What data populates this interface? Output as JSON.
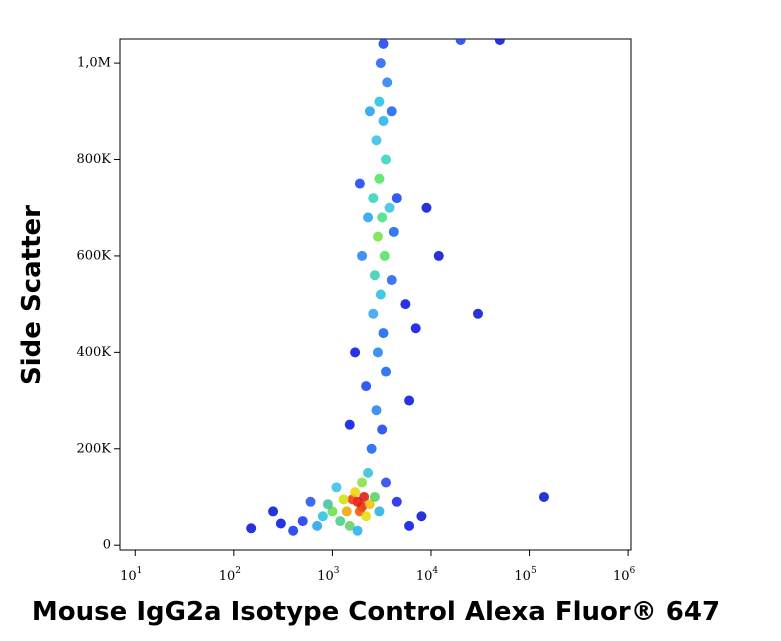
{
  "chart_data": {
    "type": "scatter",
    "xlabel": "Mouse IgG2a Isotype Control Alexa Fluor® 647",
    "ylabel": "Side Scatter",
    "xscale": "log",
    "xlim": [
      7,
      1070000
    ],
    "ylim": [
      -10000,
      1050000
    ],
    "xticks": [
      {
        "value": 10,
        "label": "10",
        "exponent": "1"
      },
      {
        "value": 100,
        "label": "10",
        "exponent": "2"
      },
      {
        "value": 1000,
        "label": "10",
        "exponent": "3"
      },
      {
        "value": 10000,
        "label": "10",
        "exponent": "4"
      },
      {
        "value": 100000,
        "label": "10",
        "exponent": "5"
      },
      {
        "value": 1000000,
        "label": "10",
        "exponent": "6"
      }
    ],
    "yticks": [
      0,
      {
        "value": 200000,
        "label": "200K"
      },
      {
        "value": 400000,
        "label": "400K"
      },
      {
        "value": 600000,
        "label": "600K"
      },
      {
        "value": 800000,
        "label": "800K"
      },
      {
        "value": 1000000,
        "label": "1,0M"
      }
    ],
    "x": [
      1800,
      2000,
      1600,
      2100,
      1900,
      1400,
      2400,
      1700,
      2200,
      1300,
      1000,
      2700,
      1200,
      2000,
      1500,
      900,
      800,
      3000,
      2300,
      1100,
      700,
      1800,
      500,
      400,
      300,
      4500,
      6000,
      3500,
      600,
      250,
      150,
      8000,
      2500,
      3200,
      2800,
      2200,
      3500,
      2900,
      3300,
      2600,
      3100,
      2700,
      3400,
      2900,
      3200,
      2600,
      3000,
      3500,
      2800,
      3300,
      3000,
      3600,
      3100,
      3300,
      2000,
      4200,
      1900,
      4500,
      5500,
      7000,
      1700,
      6000,
      9000,
      12000,
      1500,
      4000,
      2300,
      3800,
      2400,
      4000,
      20000,
      50000,
      140000,
      30000
    ],
    "y": [
      90000,
      80000,
      95000,
      100000,
      70000,
      70000,
      85000,
      110000,
      60000,
      95000,
      70000,
      100000,
      50000,
      130000,
      40000,
      85000,
      60000,
      70000,
      150000,
      120000,
      40000,
      30000,
      50000,
      30000,
      45000,
      90000,
      40000,
      130000,
      90000,
      70000,
      35000,
      60000,
      200000,
      240000,
      280000,
      330000,
      360000,
      400000,
      440000,
      480000,
      520000,
      560000,
      600000,
      640000,
      680000,
      720000,
      760000,
      800000,
      840000,
      880000,
      920000,
      960000,
      1000000,
      1040000,
      600000,
      650000,
      750000,
      720000,
      500000,
      450000,
      400000,
      300000,
      700000,
      600000,
      250000,
      550000,
      680000,
      700000,
      900000,
      900000,
      1048000,
      1048000,
      100000,
      480000
    ],
    "colors": [
      "#e01010",
      "#e02010",
      "#f03010",
      "#e01010",
      "#f05000",
      "#f0a000",
      "#f0c000",
      "#f0d000",
      "#e0e000",
      "#d0e000",
      "#60e040",
      "#50d060",
      "#40d080",
      "#80e040",
      "#60d060",
      "#40c0a0",
      "#20c0e0",
      "#20b0e0",
      "#30c0d0",
      "#30c0e0",
      "#20a0f0",
      "#20b0f0",
      "#1030f0",
      "#1030f0",
      "#0010e0",
      "#1020f0",
      "#0010e0",
      "#2040f0",
      "#2050f0",
      "#0010d0",
      "#0010d0",
      "#0010d0",
      "#1060f0",
      "#1040f0",
      "#2080f0",
      "#1040f0",
      "#1060f0",
      "#2080f0",
      "#1060f0",
      "#30a0f0",
      "#20c0e0",
      "#30d0b0",
      "#50e060",
      "#70e040",
      "#40e080",
      "#30d0c0",
      "#50e060",
      "#30d0c0",
      "#30c0e0",
      "#20b0f0",
      "#20c0e0",
      "#2080f0",
      "#2060f0",
      "#1040f0",
      "#2080f0",
      "#1060f0",
      "#1040f0",
      "#1040f0",
      "#0010e0",
      "#0010e0",
      "#0010e0",
      "#0010e0",
      "#0010d0",
      "#0010d0",
      "#0010e0",
      "#2060f0",
      "#20a0f0",
      "#30c0e0",
      "#20a0f0",
      "#1060f0",
      "#1040f0",
      "#0010e0",
      "#0010d0",
      "#0010d0"
    ]
  }
}
